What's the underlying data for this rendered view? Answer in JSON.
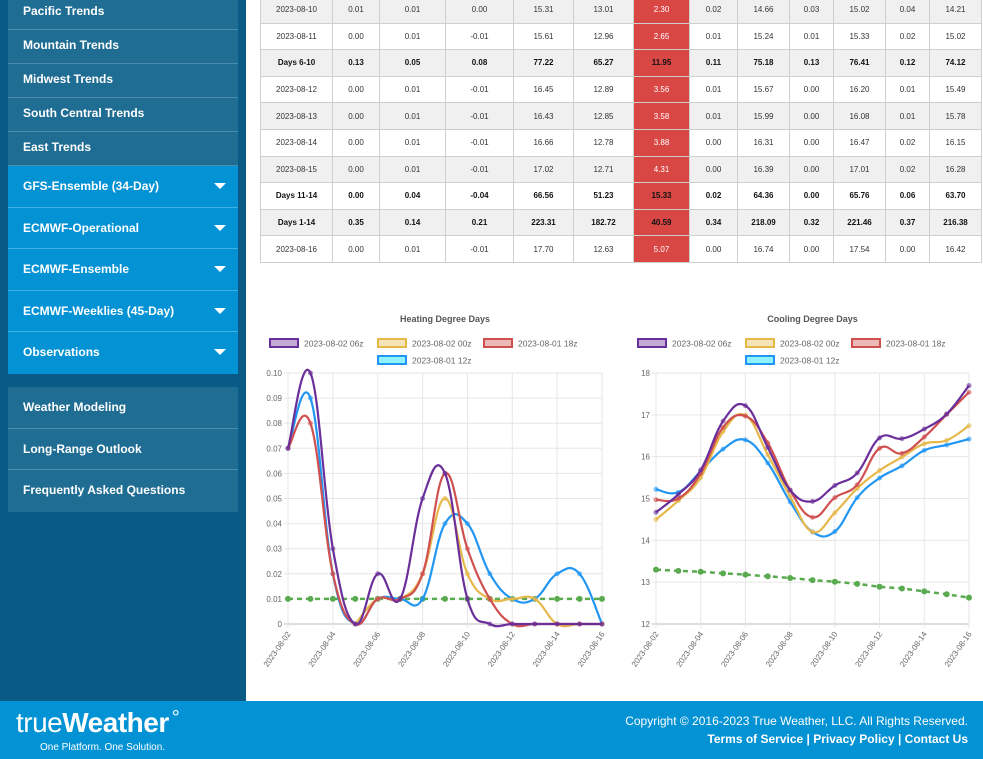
{
  "sidebar": {
    "trend_items": [
      "Pacific Trends",
      "Mountain Trends",
      "Midwest Trends",
      "South Central Trends",
      "East Trends"
    ],
    "model_items": [
      "GFS-Ensemble (34-Day)",
      "ECMWF-Operational",
      "ECMWF-Ensemble",
      "ECMWF-Weeklies (45-Day)",
      "Observations"
    ],
    "bottom_items": [
      "Weather Modeling",
      "Long-Range Outlook",
      "Frequently Asked Questions"
    ]
  },
  "table": {
    "rows": [
      {
        "label": "2023-08-10",
        "summary": false,
        "cells": [
          "0.01",
          "0.01",
          "0.00",
          "15.31",
          "13.01",
          "2.30",
          "0.02",
          "14.66",
          "0.03",
          "15.02",
          "0.04",
          "14.21"
        ]
      },
      {
        "label": "2023-08-11",
        "summary": false,
        "cells": [
          "0.00",
          "0.01",
          "-0.01",
          "15.61",
          "12.96",
          "2.65",
          "0.01",
          "15.24",
          "0.01",
          "15.33",
          "0.02",
          "15.02"
        ]
      },
      {
        "label": "Days 6-10",
        "summary": true,
        "cells": [
          "0.13",
          "0.05",
          "0.08",
          "77.22",
          "65.27",
          "11.95",
          "0.11",
          "75.18",
          "0.13",
          "76.41",
          "0.12",
          "74.12"
        ]
      },
      {
        "label": "2023-08-12",
        "summary": false,
        "cells": [
          "0.00",
          "0.01",
          "-0.01",
          "16.45",
          "12.89",
          "3.56",
          "0.01",
          "15.67",
          "0.00",
          "16.20",
          "0.01",
          "15.49"
        ]
      },
      {
        "label": "2023-08-13",
        "summary": false,
        "cells": [
          "0.00",
          "0.01",
          "-0.01",
          "16.43",
          "12.85",
          "3.58",
          "0.01",
          "15.99",
          "0.00",
          "16.08",
          "0.01",
          "15.78"
        ]
      },
      {
        "label": "2023-08-14",
        "summary": false,
        "cells": [
          "0.00",
          "0.01",
          "-0.01",
          "16.66",
          "12.78",
          "3.88",
          "0.00",
          "16.31",
          "0.00",
          "16.47",
          "0.02",
          "16.15"
        ]
      },
      {
        "label": "2023-08-15",
        "summary": false,
        "cells": [
          "0.00",
          "0.01",
          "-0.01",
          "17.02",
          "12.71",
          "4.31",
          "0.00",
          "16.39",
          "0.00",
          "17.01",
          "0.02",
          "16.28"
        ]
      },
      {
        "label": "Days 11-14",
        "summary": true,
        "cells": [
          "0.00",
          "0.04",
          "-0.04",
          "66.56",
          "51.23",
          "15.33",
          "0.02",
          "64.36",
          "0.00",
          "65.76",
          "0.06",
          "63.70"
        ]
      },
      {
        "label": "Days 1-14",
        "summary": true,
        "cells": [
          "0.35",
          "0.14",
          "0.21",
          "223.31",
          "182.72",
          "40.59",
          "0.34",
          "218.09",
          "0.32",
          "221.46",
          "0.37",
          "216.38"
        ]
      },
      {
        "label": "2023-08-16",
        "summary": false,
        "cells": [
          "0.00",
          "0.01",
          "-0.01",
          "17.70",
          "12.63",
          "5.07",
          "0.00",
          "16.74",
          "0.00",
          "17.54",
          "0.00",
          "16.42"
        ]
      }
    ],
    "highlight_color": "#d94745"
  },
  "chart_data": [
    {
      "type": "line",
      "title": "Heating Degree Days",
      "x": [
        "2023-08-02",
        "2023-08-03",
        "2023-08-04",
        "2023-08-05",
        "2023-08-06",
        "2023-08-07",
        "2023-08-08",
        "2023-08-09",
        "2023-08-10",
        "2023-08-11",
        "2023-08-12",
        "2023-08-13",
        "2023-08-14",
        "2023-08-15",
        "2023-08-16"
      ],
      "xticks": [
        "2023-08-02",
        "2023-08-04",
        "2023-08-06",
        "2023-08-08",
        "2023-08-10",
        "2023-08-12",
        "2023-08-14",
        "2023-08-16"
      ],
      "yticks": [
        "0",
        "0.01",
        "0.02",
        "0.03",
        "0.04",
        "0.05",
        "0.06",
        "0.07",
        "0.08",
        "0.09",
        "0.10"
      ],
      "ylim": [
        0,
        0.1
      ],
      "grid": true,
      "legend": "top",
      "series": [
        {
          "name": "2023-08-02 06z",
          "color": "#6a2f9a",
          "fill": "#c3acd6",
          "values": [
            0.07,
            0.1,
            0.03,
            0.0,
            0.02,
            0.01,
            0.05,
            0.06,
            0.01,
            0.0,
            0.0,
            0.0,
            0.0,
            0.0,
            0.0
          ]
        },
        {
          "name": "2023-08-02 00z",
          "color": "#e6b84a",
          "fill": "#f5e3b5",
          "values": [
            null,
            null,
            null,
            0.0,
            0.01,
            0.01,
            0.02,
            0.05,
            0.02,
            0.01,
            0.01,
            0.01,
            0.0,
            0.0,
            0.0
          ]
        },
        {
          "name": "2023-08-01 18z",
          "color": "#d05050",
          "fill": "#edb8b8",
          "values": [
            0.07,
            0.08,
            0.02,
            0.0,
            0.01,
            0.01,
            0.02,
            0.06,
            0.03,
            0.01,
            0.0,
            0.0,
            0.0,
            0.0,
            0.0
          ]
        },
        {
          "name": "2023-08-01 12z",
          "color": "#2196f3",
          "fill": "#8ef3fb",
          "values": [
            0.07,
            0.09,
            0.02,
            0.0,
            0.01,
            0.01,
            0.01,
            0.04,
            0.04,
            0.02,
            0.01,
            0.01,
            0.02,
            0.02,
            0.0
          ]
        },
        {
          "name": "normal",
          "color": "#5aaa50",
          "dashed": true,
          "legend": false,
          "values": [
            0.01,
            0.01,
            0.01,
            0.01,
            0.01,
            0.01,
            0.01,
            0.01,
            0.01,
            0.01,
            0.01,
            0.01,
            0.01,
            0.01,
            0.01
          ]
        }
      ]
    },
    {
      "type": "line",
      "title": "Cooling Degree Days",
      "x": [
        "2023-08-02",
        "2023-08-03",
        "2023-08-04",
        "2023-08-05",
        "2023-08-06",
        "2023-08-07",
        "2023-08-08",
        "2023-08-09",
        "2023-08-10",
        "2023-08-11",
        "2023-08-12",
        "2023-08-13",
        "2023-08-14",
        "2023-08-15",
        "2023-08-16"
      ],
      "xticks": [
        "2023-08-02",
        "2023-08-04",
        "2023-08-06",
        "2023-08-08",
        "2023-08-10",
        "2023-08-12",
        "2023-08-14",
        "2023-08-16"
      ],
      "yticks": [
        "12",
        "13",
        "14",
        "15",
        "16",
        "17",
        "18"
      ],
      "ylim": [
        12,
        18
      ],
      "grid": true,
      "legend": "top",
      "series": [
        {
          "name": "2023-08-02 06z",
          "color": "#6a2f9a",
          "fill": "#c3acd6",
          "values": [
            14.67,
            15.1,
            15.68,
            16.85,
            17.22,
            16.22,
            15.2,
            14.93,
            15.31,
            15.61,
            16.45,
            16.43,
            16.66,
            17.02,
            17.7
          ]
        },
        {
          "name": "2023-08-02 00z",
          "color": "#e6b84a",
          "fill": "#f5e3b5",
          "values": [
            14.5,
            14.95,
            15.5,
            16.6,
            16.99,
            16.05,
            15.05,
            14.2,
            14.66,
            15.24,
            15.67,
            15.99,
            16.31,
            16.39,
            16.74
          ]
        },
        {
          "name": "2023-08-01 18z",
          "color": "#d05050",
          "fill": "#edb8b8",
          "values": [
            14.97,
            15.0,
            15.6,
            16.7,
            16.97,
            16.33,
            15.2,
            14.55,
            15.02,
            15.33,
            16.2,
            16.08,
            16.47,
            17.01,
            17.54
          ]
        },
        {
          "name": "2023-08-01 12z",
          "color": "#2196f3",
          "fill": "#8ef3fb",
          "values": [
            15.22,
            15.15,
            15.65,
            16.18,
            16.4,
            15.85,
            14.92,
            14.2,
            14.21,
            15.02,
            15.49,
            15.78,
            16.15,
            16.28,
            16.42
          ]
        },
        {
          "name": "normal",
          "color": "#5aaa50",
          "dashed": true,
          "legend": false,
          "values": [
            13.3,
            13.27,
            13.25,
            13.21,
            13.18,
            13.14,
            13.1,
            13.05,
            13.01,
            12.96,
            12.89,
            12.85,
            12.78,
            12.71,
            12.63
          ]
        }
      ]
    }
  ],
  "footer": {
    "logo_light": "true",
    "logo_bold": "Weather",
    "logo_tagline": "One Platform. One Solution.",
    "copyright": "Copyright © 2016-2023 True Weather, LLC. All Rights Reserved.",
    "links": [
      "Terms of Service",
      "Privacy Policy",
      "Contact Us"
    ],
    "separator": " | "
  }
}
